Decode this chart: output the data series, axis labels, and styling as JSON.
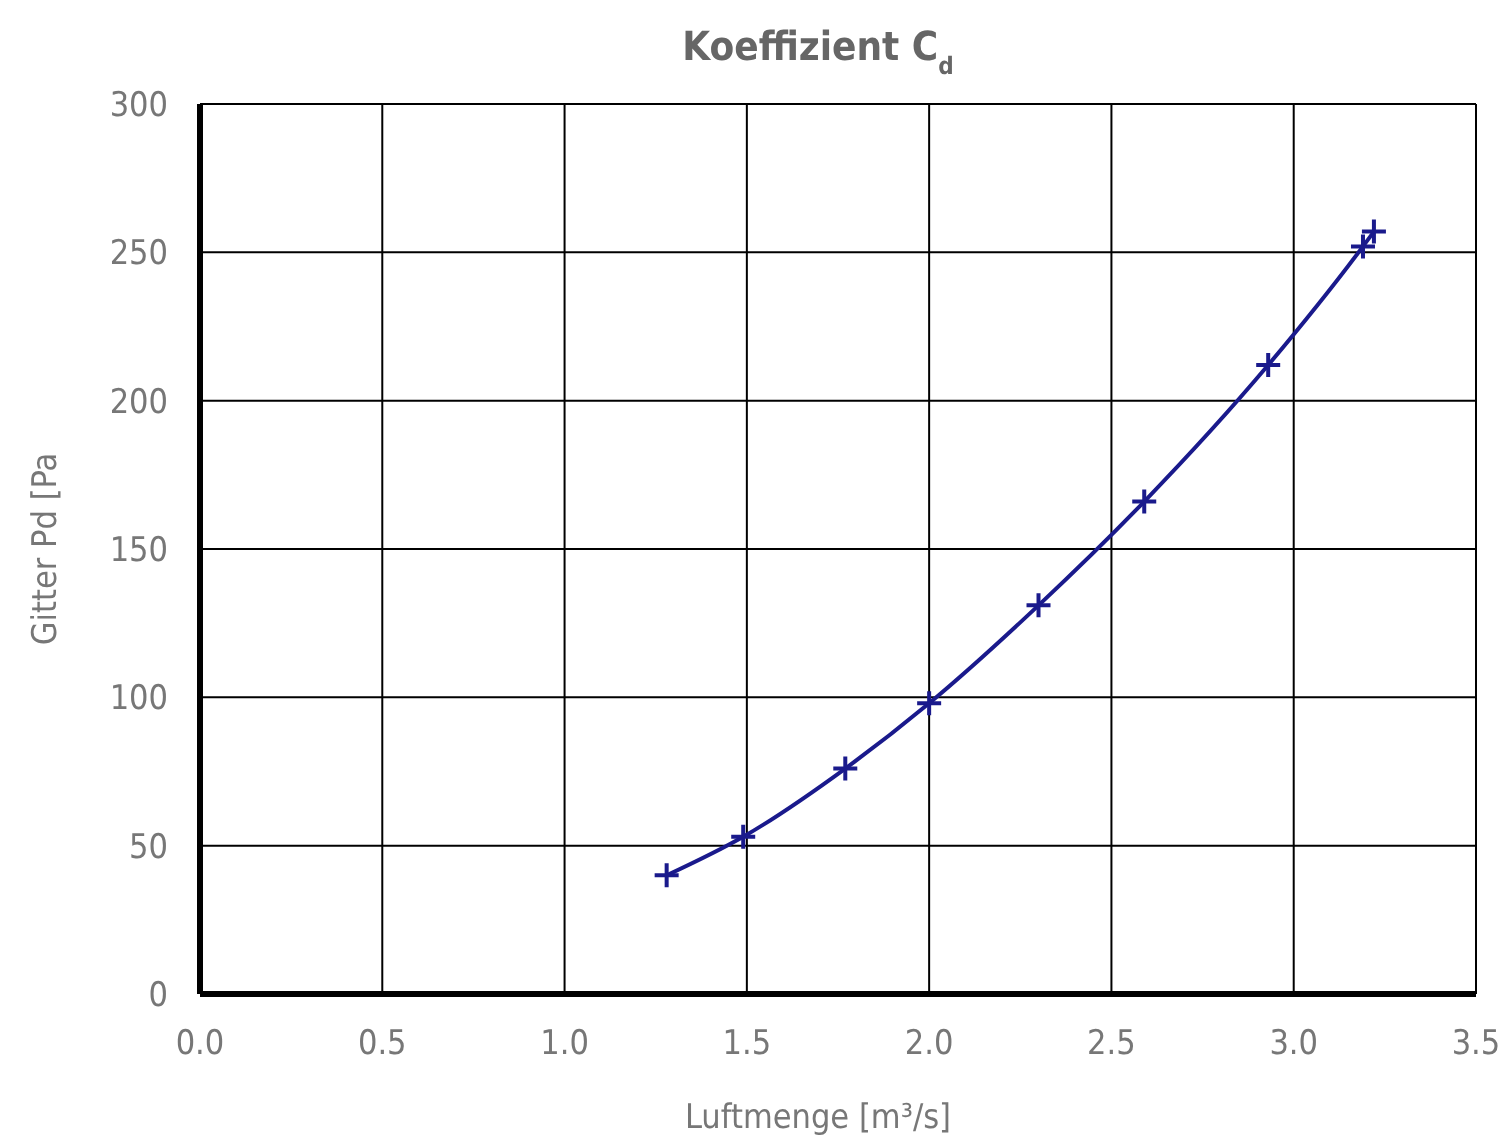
{
  "chart_data": {
    "type": "line",
    "title": "Koeffizient C$_{d}$",
    "xlabel": "Luftmenge [m³/s]",
    "ylabel": "Gitter  Pd [Pa",
    "x": [
      1.28,
      1.49,
      1.77,
      2.0,
      2.3,
      2.59,
      2.93,
      3.19,
      3.22
    ],
    "series": [
      {
        "color": "#1a1a8c",
        "values": [
          40,
          53,
          76,
          98,
          131,
          166,
          212,
          252,
          257
        ]
      }
    ],
    "xlim": [
      0,
      3.5
    ],
    "xticks": [
      {
        "value": 0,
        "label": "0.0"
      },
      {
        "value": 0.5,
        "label": "0.5"
      },
      {
        "value": 1,
        "label": "1.0"
      },
      {
        "value": 1.5,
        "label": "1.5"
      },
      {
        "value": 2,
        "label": "2.0"
      },
      {
        "value": 2.5,
        "label": "2.5"
      },
      {
        "value": 3,
        "label": "3.0"
      },
      {
        "value": 3.5,
        "label": "3.5"
      }
    ],
    "ylim": [
      0,
      300
    ],
    "yticks": [
      0,
      50,
      100,
      150,
      200,
      250,
      300
    ],
    "grid": true,
    "marker": "cross",
    "line_style": "solid"
  }
}
